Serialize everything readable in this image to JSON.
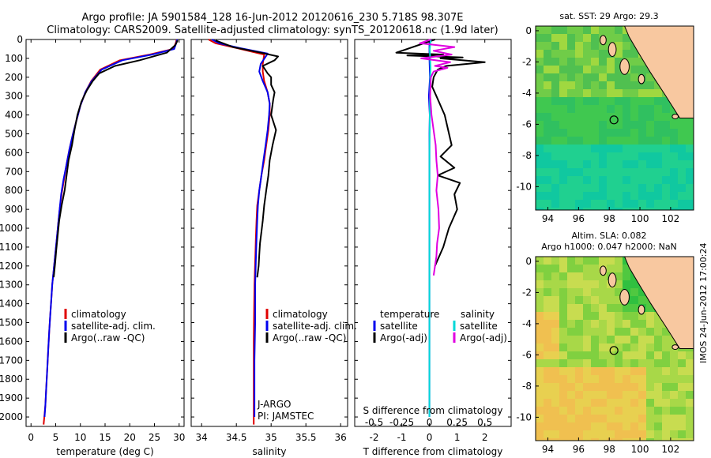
{
  "header": {
    "title_line1": "Argo profile: JA 5901584_128 16-Jun-2012 20120616_230 5.718S 98.307E",
    "title_line2": "Climatology: CARS2009. Satellite-adjusted climatology: synTS_20120618.nc (1.9d later)"
  },
  "depth_ticks": [
    0,
    100,
    200,
    300,
    400,
    500,
    600,
    700,
    800,
    900,
    1000,
    1100,
    1200,
    1300,
    1400,
    1500,
    1600,
    1700,
    1800,
    1900,
    2000
  ],
  "colors": {
    "climatology": "#e00000",
    "satellite": "#0000ee",
    "argo": "#000000",
    "sal_sat": "#00d8d8",
    "sal_argo": "#e000e0",
    "land": "#f8c8a0"
  },
  "chart_data": [
    {
      "type": "line",
      "panel": "temperature",
      "xlabel": "temperature (deg C)",
      "ylim": [
        0,
        2050
      ],
      "xlim": [
        -1,
        31
      ],
      "xticks": [
        0,
        5,
        10,
        15,
        20,
        25,
        30
      ],
      "legend": [
        "climatology",
        "satellite-adj. clim.",
        "Argo(..raw -QC)"
      ],
      "series": [
        {
          "name": "climatology",
          "x": [
            29.5,
            29.3,
            28.8,
            24,
            18,
            14,
            12.2,
            11,
            10,
            9.3,
            8.5,
            7.8,
            7.2,
            6.7,
            6.2,
            5.8,
            5.5,
            5.2,
            4.9,
            4.6,
            4.3,
            4.1,
            3.9,
            3.7,
            3.5,
            3.3,
            3.1,
            2.9,
            2.7,
            2.55
          ],
          "y": [
            0,
            20,
            50,
            80,
            110,
            160,
            220,
            280,
            350,
            420,
            500,
            580,
            660,
            740,
            820,
            900,
            980,
            1060,
            1140,
            1220,
            1300,
            1380,
            1460,
            1540,
            1640,
            1740,
            1840,
            1940,
            2000,
            2040
          ]
        },
        {
          "name": "satellite-adj. clim.",
          "x": [
            29.6,
            29.4,
            29,
            24.5,
            18.5,
            14.3,
            12.3,
            11,
            10,
            9.3,
            8.5,
            7.8,
            7.2,
            6.6,
            6.1,
            5.8,
            5.5,
            5.2,
            4.9,
            4.6,
            4.3,
            4.1,
            3.9,
            3.7,
            3.5,
            3.3,
            3.1,
            2.9,
            2.75
          ],
          "y": [
            0,
            20,
            50,
            80,
            110,
            160,
            220,
            280,
            350,
            420,
            500,
            580,
            660,
            740,
            820,
            900,
            980,
            1060,
            1140,
            1220,
            1300,
            1380,
            1460,
            1540,
            1640,
            1740,
            1840,
            1940,
            2000
          ]
        },
        {
          "name": "Argo(..raw -QC)",
          "x": [
            29.7,
            29.2,
            27.5,
            22,
            17,
            13.8,
            12.5,
            11.3,
            10.2,
            9.4,
            8.8,
            8.3,
            7.6,
            7.2,
            6.8,
            6.2,
            5.7,
            5.4,
            5.1,
            4.9,
            4.6
          ],
          "y": [
            5,
            30,
            70,
            110,
            140,
            180,
            220,
            270,
            330,
            400,
            480,
            560,
            640,
            720,
            800,
            880,
            960,
            1040,
            1120,
            1180,
            1260
          ]
        }
      ]
    },
    {
      "type": "line",
      "panel": "salinity",
      "xlabel": "salinity",
      "ylim": [
        0,
        2050
      ],
      "xlim": [
        33.85,
        36.1
      ],
      "xticks": [
        34,
        34.5,
        35,
        35.5,
        36
      ],
      "xtick_labels": [
        "34",
        "34.5",
        "35",
        "35.5",
        "36"
      ],
      "legend": [
        "climatology",
        "satellite-adj. clim.",
        "Argo(..raw -QC)"
      ],
      "annotation_line1": "J-ARGO",
      "annotation_line2": "PI: JAMSTEC",
      "series": [
        {
          "name": "climatology",
          "x": [
            34.1,
            34.2,
            34.5,
            34.9,
            34.88,
            34.88,
            34.9,
            34.95,
            34.98,
            34.98,
            34.96,
            34.93,
            34.9,
            34.86,
            34.83,
            34.8,
            34.79,
            34.78,
            34.77,
            34.76,
            34.755,
            34.75,
            34.75,
            34.75,
            34.75
          ],
          "y": [
            0,
            20,
            45,
            80,
            130,
            170,
            220,
            280,
            340,
            400,
            480,
            560,
            640,
            720,
            800,
            880,
            960,
            1060,
            1180,
            1300,
            1450,
            1600,
            1750,
            1900,
            2040
          ]
        },
        {
          "name": "satellite-adj. clim.",
          "x": [
            34.15,
            34.25,
            34.55,
            34.95,
            34.85,
            34.83,
            34.88,
            34.95,
            34.98,
            34.97,
            34.95,
            34.92,
            34.89,
            34.86,
            34.83,
            34.81,
            34.8,
            34.79,
            34.78,
            34.77,
            34.77,
            34.76,
            34.76
          ],
          "y": [
            0,
            20,
            45,
            75,
            130,
            170,
            220,
            280,
            340,
            400,
            480,
            560,
            640,
            720,
            800,
            880,
            960,
            1060,
            1180,
            1300,
            1500,
            1700,
            2000
          ]
        },
        {
          "name": "Argo(..raw -QC)",
          "x": [
            34.2,
            34.45,
            34.85,
            35.1,
            35.05,
            34.88,
            34.95,
            35.0,
            35.0,
            35.05,
            35.03,
            35.0,
            35.07,
            35.02,
            34.98,
            34.96,
            34.93,
            34.9,
            34.88,
            34.86,
            34.84,
            34.83,
            34.82,
            34.8
          ],
          "y": [
            5,
            40,
            70,
            90,
            110,
            140,
            180,
            200,
            240,
            280,
            320,
            400,
            480,
            560,
            640,
            720,
            800,
            880,
            960,
            1020,
            1080,
            1140,
            1200,
            1260
          ]
        }
      ]
    },
    {
      "type": "line",
      "panel": "difference",
      "xlabel": "T difference from climatology",
      "xlabel_top": "S difference from climatology",
      "ylim": [
        0,
        2050
      ],
      "xlim": [
        -2.7,
        2.95
      ],
      "xticks": [
        -2,
        -1,
        0,
        1,
        2
      ],
      "xtick_labels": [
        "-2",
        "-1",
        "0",
        "1",
        "2"
      ],
      "s_ticks": [
        -0.5,
        -0.25,
        0,
        0.25,
        0.5
      ],
      "s_tick_labels": [
        "-0.5",
        "-0.25",
        "0",
        "0.25",
        "0.5"
      ],
      "legend_temperature": "temperature",
      "legend_salinity": "salinity",
      "legend_satellite": "satellite",
      "legend_argo": "Argo(-adj)",
      "series": [
        {
          "name": "temperature satellite",
          "x": [
            0,
            0,
            0.02,
            -0.02,
            0.01,
            0,
            0,
            0,
            0,
            0,
            0,
            0,
            0,
            0,
            0,
            0,
            0,
            0,
            0,
            0,
            0
          ],
          "y": [
            0,
            100,
            200,
            300,
            400,
            500,
            600,
            700,
            800,
            900,
            1000,
            1100,
            1200,
            1300,
            1400,
            1500,
            1600,
            1700,
            1800,
            1900,
            2000
          ]
        },
        {
          "name": "temperature Argo(-adj)",
          "x": [
            0.2,
            -1.2,
            0.5,
            -0.8,
            1.2,
            0.4,
            2.0,
            0.6,
            0.3,
            0.15,
            0.1,
            0.25,
            0.55,
            0.8,
            0.4,
            0.9,
            0.3,
            1.1,
            0.9,
            1.0,
            0.7,
            0.5,
            0.2
          ],
          "y": [
            0,
            70,
            80,
            85,
            95,
            100,
            120,
            140,
            160,
            200,
            250,
            300,
            400,
            560,
            620,
            680,
            720,
            760,
            820,
            900,
            1000,
            1100,
            1200
          ]
        },
        {
          "name": "salinity satellite",
          "x": [
            0.1,
            0.02,
            0.05,
            0.08,
            0.06,
            0.04,
            0.02,
            0,
            0,
            0,
            0,
            0
          ],
          "y": [
            0,
            50,
            100,
            150,
            200,
            300,
            400,
            600,
            900,
            1200,
            1600,
            2000
          ]
        },
        {
          "name": "salinity Argo(-adj)",
          "x": [
            0.1,
            -0.7,
            1.8,
            0.3,
            1.6,
            -0.6,
            1.5,
            0.4,
            1.3,
            0.3,
            0.1,
            0.05,
            0.15,
            0.45,
            0.5,
            0.6,
            0.5,
            0.65,
            0.7,
            0.55,
            0.5,
            0.3
          ],
          "y": [
            0,
            20,
            40,
            60,
            80,
            100,
            120,
            140,
            150,
            170,
            200,
            300,
            400,
            560,
            640,
            720,
            800,
            900,
            1000,
            1080,
            1150,
            1250
          ]
        }
      ]
    },
    {
      "type": "heatmap",
      "panel": "sat_sst_map",
      "title": "sat. SST: 29 Argo: 29.3",
      "xticks": [
        94,
        96,
        98,
        100,
        102
      ],
      "yticks": [
        0,
        -2,
        -4,
        -6,
        -8,
        -10
      ],
      "xlim": [
        93.2,
        103.5
      ],
      "ylim": [
        -11.5,
        0.3
      ],
      "argo_position": {
        "lon": 98.307,
        "lat": -5.718
      }
    },
    {
      "type": "heatmap",
      "panel": "altimetry_map",
      "title_line1": "Altim. SLA: 0.082",
      "title_line2": "Argo h1000: 0.047 h2000: NaN",
      "xticks": [
        94,
        96,
        98,
        100,
        102
      ],
      "yticks": [
        0,
        -2,
        -4,
        -6,
        -8,
        -10
      ],
      "xlim": [
        93.2,
        103.5
      ],
      "ylim": [
        -11.5,
        0.3
      ],
      "argo_position": {
        "lon": 98.307,
        "lat": -5.718
      }
    }
  ],
  "footer_stamp": "IMOS 24-Jun-2012 17:00:24"
}
